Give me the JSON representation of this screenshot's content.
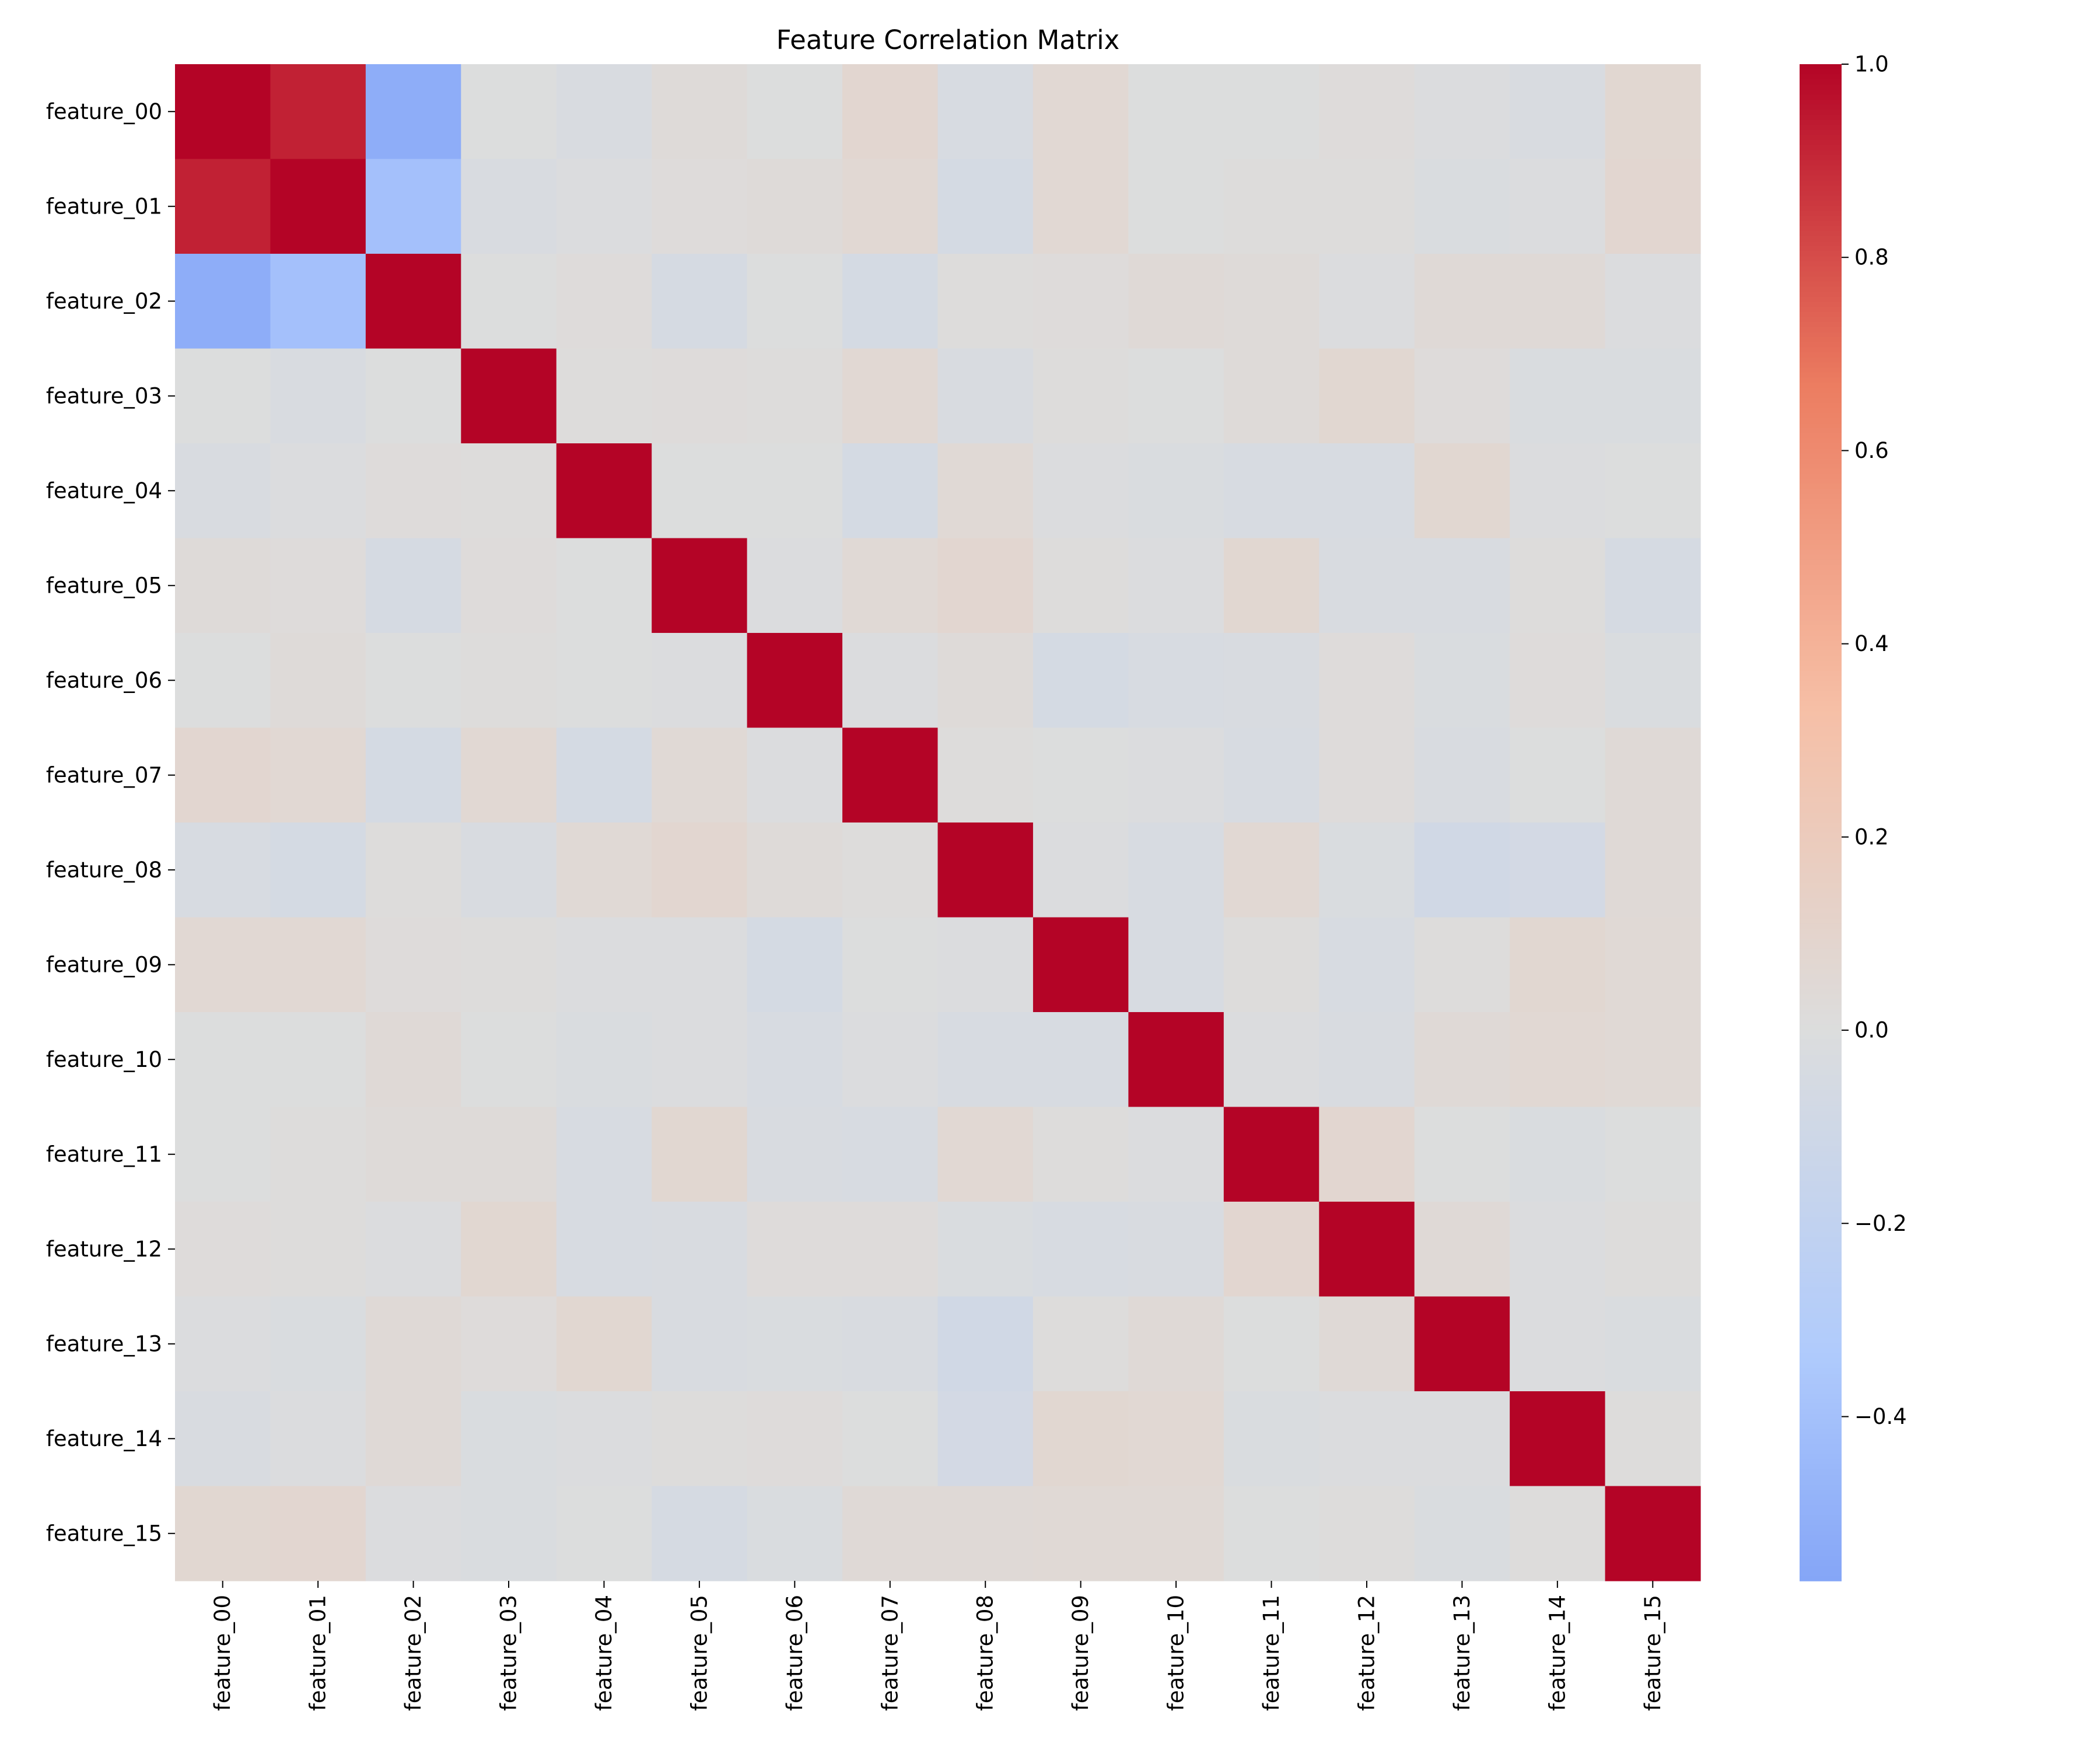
{
  "chart_data": {
    "type": "heatmap",
    "title": "Feature Correlation Matrix",
    "xlabel": "",
    "ylabel": "",
    "rows": [
      "feature_00",
      "feature_01",
      "feature_02",
      "feature_03",
      "feature_04",
      "feature_05",
      "feature_06",
      "feature_07",
      "feature_08",
      "feature_09",
      "feature_10",
      "feature_11",
      "feature_12",
      "feature_13",
      "feature_14",
      "feature_15"
    ],
    "columns": [
      "feature_00",
      "feature_01",
      "feature_02",
      "feature_03",
      "feature_04",
      "feature_05",
      "feature_06",
      "feature_07",
      "feature_08",
      "feature_09",
      "feature_10",
      "feature_11",
      "feature_12",
      "feature_13",
      "feature_14",
      "feature_15"
    ],
    "values": [
      [
        1.0,
        0.92,
        -0.52,
        0.0,
        -0.03,
        0.03,
        0.0,
        0.08,
        -0.04,
        0.06,
        0.0,
        0.0,
        0.02,
        -0.01,
        -0.03,
        0.07
      ],
      [
        0.92,
        1.0,
        -0.4,
        -0.03,
        -0.01,
        0.02,
        0.03,
        0.06,
        -0.06,
        0.06,
        0.0,
        0.01,
        0.01,
        -0.02,
        -0.01,
        0.08
      ],
      [
        -0.52,
        -0.4,
        1.0,
        0.0,
        0.02,
        -0.05,
        0.0,
        -0.06,
        0.01,
        0.02,
        0.04,
        0.03,
        -0.01,
        0.04,
        0.04,
        -0.01
      ],
      [
        0.0,
        -0.03,
        0.0,
        1.0,
        0.01,
        0.02,
        0.01,
        0.06,
        -0.03,
        0.01,
        0.0,
        0.03,
        0.07,
        0.02,
        -0.02,
        -0.02
      ],
      [
        -0.03,
        -0.01,
        0.02,
        0.01,
        1.0,
        0.0,
        0.0,
        -0.06,
        0.05,
        -0.01,
        -0.02,
        -0.04,
        -0.04,
        0.07,
        -0.01,
        0.0
      ],
      [
        0.03,
        0.02,
        -0.05,
        0.02,
        0.0,
        1.0,
        -0.01,
        0.05,
        0.08,
        0.01,
        -0.01,
        0.07,
        -0.03,
        -0.03,
        0.01,
        -0.05
      ],
      [
        0.0,
        0.03,
        0.0,
        0.01,
        0.0,
        -0.01,
        1.0,
        -0.01,
        0.03,
        -0.06,
        -0.04,
        -0.03,
        0.02,
        -0.02,
        0.02,
        -0.02
      ],
      [
        0.08,
        0.06,
        -0.06,
        0.06,
        -0.06,
        0.05,
        -0.01,
        1.0,
        0.01,
        0.0,
        -0.01,
        -0.04,
        0.02,
        -0.03,
        0.0,
        0.04
      ],
      [
        -0.04,
        -0.06,
        0.01,
        -0.03,
        0.05,
        0.08,
        0.03,
        0.01,
        1.0,
        -0.01,
        -0.04,
        0.06,
        -0.02,
        -0.09,
        -0.07,
        0.04
      ],
      [
        0.06,
        0.06,
        0.02,
        0.01,
        -0.01,
        -0.01,
        -0.06,
        0.0,
        -0.01,
        1.0,
        -0.04,
        0.01,
        -0.04,
        0.01,
        0.07,
        0.05
      ],
      [
        0.0,
        0.0,
        0.04,
        0.0,
        -0.02,
        -0.01,
        -0.04,
        -0.01,
        -0.04,
        -0.04,
        1.0,
        -0.01,
        -0.03,
        0.04,
        0.06,
        0.05
      ],
      [
        0.0,
        0.01,
        0.03,
        0.03,
        -0.04,
        0.07,
        -0.03,
        -0.04,
        0.06,
        0.01,
        -0.01,
        1.0,
        0.08,
        0.0,
        -0.02,
        0.0
      ],
      [
        0.02,
        0.01,
        -0.01,
        0.07,
        -0.04,
        -0.03,
        0.02,
        0.02,
        -0.02,
        -0.04,
        -0.03,
        0.08,
        1.0,
        0.04,
        -0.01,
        0.01
      ],
      [
        -0.01,
        -0.02,
        0.04,
        0.02,
        0.07,
        -0.03,
        -0.02,
        -0.03,
        -0.09,
        0.01,
        0.04,
        0.0,
        0.04,
        1.0,
        -0.01,
        -0.02
      ],
      [
        -0.03,
        -0.01,
        0.04,
        -0.02,
        -0.01,
        0.01,
        0.02,
        0.0,
        -0.07,
        0.07,
        0.06,
        -0.02,
        -0.01,
        -0.01,
        1.0,
        0.01
      ],
      [
        0.07,
        0.08,
        -0.01,
        -0.02,
        0.0,
        -0.05,
        -0.02,
        0.04,
        0.04,
        0.05,
        0.05,
        0.0,
        0.01,
        -0.02,
        0.01,
        1.0
      ]
    ],
    "colormap": "coolwarm",
    "colormap_stops": [
      "#3b4cc0",
      "#7396f5",
      "#b0cbfc",
      "#dcdddd",
      "#f6bfa6",
      "#ec7d61",
      "#b40426"
    ],
    "color_range": [
      -1.0,
      1.0
    ],
    "colorbar_range": [
      -0.57,
      1.0
    ],
    "colorbar_ticks": [
      1.0,
      0.8,
      0.6,
      0.4,
      0.2,
      0.0,
      -0.2,
      -0.4
    ],
    "colorbar_tick_labels": [
      "1.0",
      "0.8",
      "0.6",
      "0.4",
      "0.2",
      "0.0",
      "−0.2",
      "−0.4"
    ],
    "grid": false,
    "legend": "colorbar-right"
  }
}
